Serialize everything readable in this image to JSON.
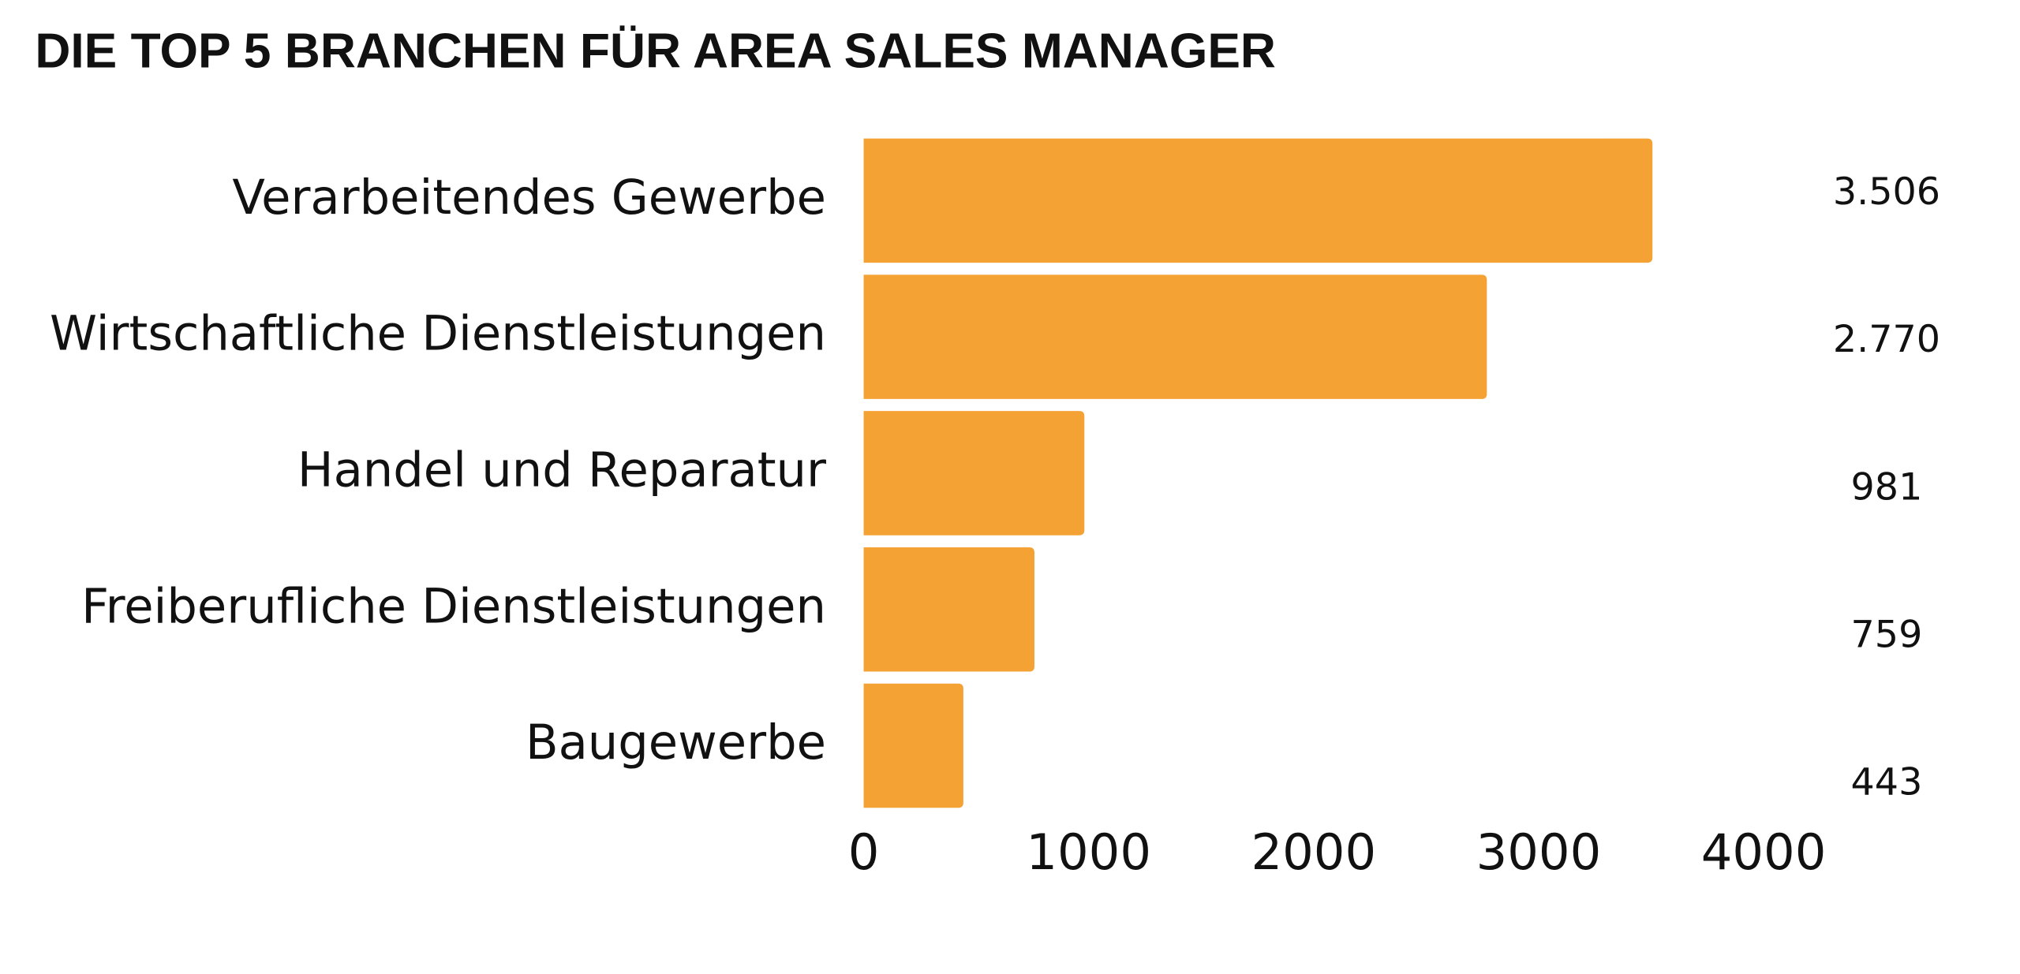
{
  "chart_data": {
    "type": "bar",
    "orientation": "horizontal",
    "title": "DIE TOP 5 BRANCHEN FÜR AREA SALES MANAGER",
    "categories": [
      "Verarbeitendes Gewerbe",
      "Wirtschaftliche Dienstleistungen",
      "Handel und Reparatur",
      "Freiberufliche Dienstleistungen",
      "Baugewerbe"
    ],
    "values": [
      3506,
      2770,
      981,
      759,
      443
    ],
    "value_labels": [
      "3.506",
      "2.770",
      "981",
      "759",
      "443"
    ],
    "color": "#f4a234",
    "xlim": [
      0,
      4000
    ],
    "xticks": [
      0,
      1000,
      2000,
      3000,
      4000
    ],
    "grid": false
  }
}
